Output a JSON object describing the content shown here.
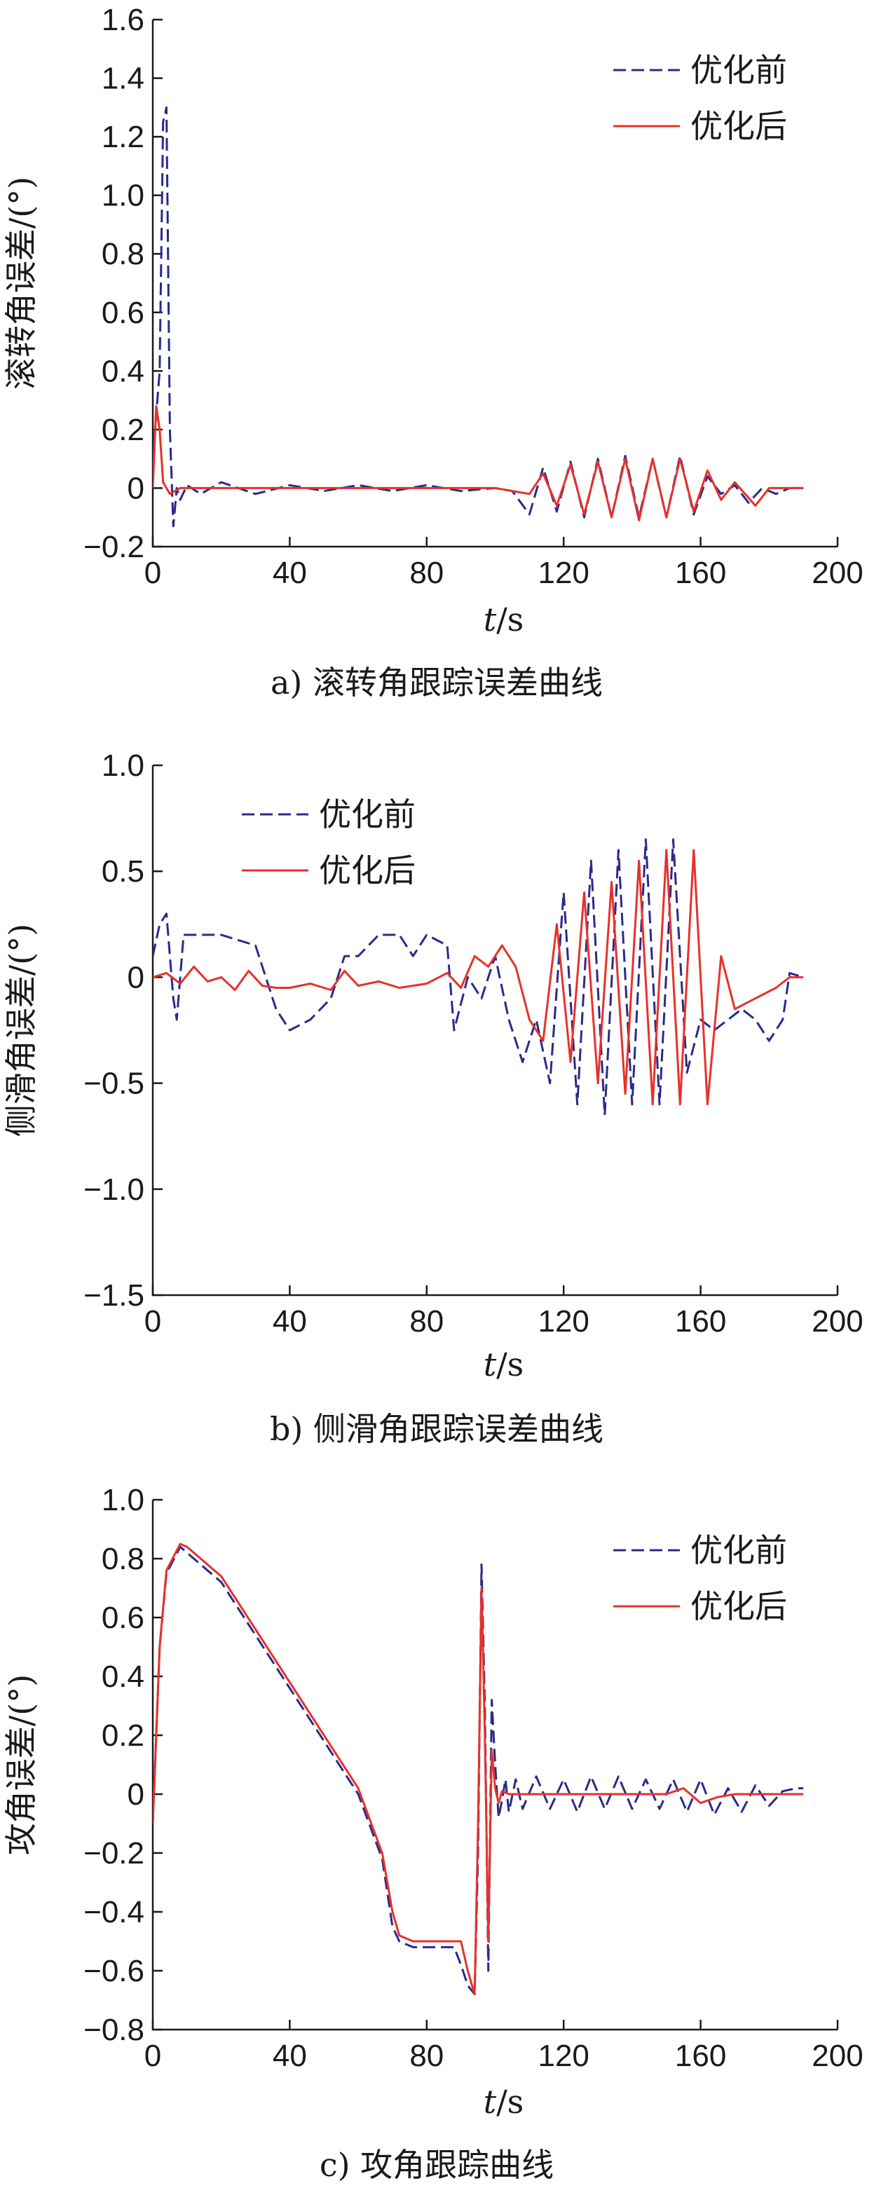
{
  "colors": {
    "before": "#2a2a8c",
    "after": "#e8312a",
    "axis": "#1a1a1a"
  },
  "chart_data": [
    {
      "type": "line",
      "caption": "a) 滚转角跟踪误差曲线",
      "xlabel_italic": "t",
      "xlabel_unit": "/s",
      "ylabel": "滚转角误差/(°)",
      "xlim": [
        0,
        200
      ],
      "ylim": [
        -0.2,
        1.6
      ],
      "xticks": [
        0,
        40,
        80,
        120,
        160,
        200
      ],
      "yticks": [
        -0.2,
        0,
        0.2,
        0.4,
        0.6,
        0.8,
        1.0,
        1.2,
        1.4,
        1.6
      ],
      "ytick_labels": [
        "−0.2",
        "0",
        "0.2",
        "0.4",
        "0.6",
        "0.8",
        "1.0",
        "1.2",
        "1.4",
        "1.6"
      ],
      "legend": "top-right",
      "series": [
        {
          "name": "优化前",
          "style": "dashed",
          "x": [
            0,
            2,
            3,
            4,
            5,
            6,
            7,
            8,
            10,
            14,
            20,
            30,
            40,
            50,
            60,
            70,
            80,
            90,
            100,
            105,
            110,
            114,
            118,
            122,
            126,
            130,
            134,
            138,
            142,
            146,
            150,
            154,
            158,
            162,
            166,
            170,
            174,
            178,
            182,
            186,
            190
          ],
          "y": [
            0.1,
            0.4,
            1.25,
            1.3,
            0.2,
            -0.13,
            0.0,
            -0.04,
            0.01,
            -0.02,
            0.02,
            -0.02,
            0.01,
            -0.01,
            0.01,
            -0.01,
            0.01,
            -0.01,
            0.0,
            -0.01,
            -0.09,
            0.07,
            -0.08,
            0.09,
            -0.1,
            0.1,
            -0.1,
            0.11,
            -0.1,
            0.1,
            -0.1,
            0.11,
            -0.09,
            0.04,
            -0.02,
            0.01,
            -0.05,
            0.0,
            -0.02,
            0.0,
            0.0
          ]
        },
        {
          "name": "优化后",
          "style": "solid",
          "x": [
            0,
            1,
            2,
            3,
            5,
            8,
            10,
            20,
            40,
            60,
            80,
            100,
            105,
            110,
            114,
            118,
            122,
            126,
            130,
            134,
            138,
            142,
            146,
            150,
            154,
            158,
            162,
            166,
            170,
            176,
            180,
            184,
            190
          ],
          "y": [
            0.0,
            0.28,
            0.2,
            0.02,
            -0.02,
            0.0,
            0.0,
            0.0,
            0.0,
            0.0,
            0.0,
            0.0,
            -0.01,
            -0.02,
            0.05,
            -0.06,
            0.08,
            -0.09,
            0.09,
            -0.1,
            0.1,
            -0.11,
            0.1,
            -0.1,
            0.1,
            -0.08,
            0.06,
            -0.04,
            0.02,
            -0.06,
            0.0,
            0.0,
            0.0
          ]
        }
      ]
    },
    {
      "type": "line",
      "caption": "b) 侧滑角跟踪误差曲线",
      "xlabel_italic": "t",
      "xlabel_unit": "/s",
      "ylabel": "侧滑角误差/(°)",
      "xlim": [
        0,
        200
      ],
      "ylim": [
        -1.5,
        1.0
      ],
      "xticks": [
        0,
        40,
        80,
        120,
        160,
        200
      ],
      "yticks": [
        -1.5,
        -1.0,
        -0.5,
        0,
        0.5,
        1.0
      ],
      "ytick_labels": [
        "−1.5",
        "−1.0",
        "−0.5",
        "0",
        "0.5",
        "1.0"
      ],
      "legend": "top-left",
      "series": [
        {
          "name": "优化前",
          "style": "dashed",
          "x": [
            0,
            2,
            4,
            6,
            7,
            9,
            12,
            20,
            30,
            36,
            40,
            46,
            52,
            56,
            60,
            66,
            72,
            76,
            80,
            86,
            88,
            92,
            96,
            100,
            104,
            108,
            112,
            116,
            120,
            124,
            128,
            132,
            136,
            140,
            144,
            148,
            152,
            156,
            160,
            164,
            168,
            172,
            176,
            180,
            184,
            186,
            190
          ],
          "y": [
            0.1,
            0.25,
            0.3,
            -0.1,
            -0.2,
            0.2,
            0.2,
            0.2,
            0.15,
            -0.15,
            -0.25,
            -0.2,
            -0.1,
            0.1,
            0.1,
            0.2,
            0.2,
            0.1,
            0.2,
            0.15,
            -0.25,
            0.0,
            -0.1,
            0.1,
            -0.2,
            -0.4,
            -0.2,
            -0.5,
            0.4,
            -0.6,
            0.55,
            -0.65,
            0.6,
            -0.6,
            0.65,
            -0.6,
            0.65,
            -0.45,
            -0.2,
            -0.25,
            -0.2,
            -0.15,
            -0.2,
            -0.3,
            -0.2,
            0.02,
            0.0
          ]
        },
        {
          "name": "优化后",
          "style": "solid",
          "x": [
            0,
            4,
            8,
            12,
            16,
            20,
            24,
            28,
            32,
            36,
            40,
            46,
            52,
            56,
            60,
            66,
            72,
            80,
            86,
            90,
            94,
            98,
            102,
            106,
            110,
            114,
            118,
            122,
            126,
            130,
            134,
            138,
            142,
            146,
            150,
            154,
            158,
            162,
            166,
            170,
            176,
            182,
            186,
            190
          ],
          "y": [
            0.0,
            0.02,
            -0.03,
            0.05,
            -0.02,
            0.0,
            -0.06,
            0.03,
            -0.04,
            -0.05,
            -0.05,
            -0.03,
            -0.06,
            0.03,
            -0.04,
            -0.02,
            -0.05,
            -0.03,
            0.02,
            -0.05,
            0.1,
            0.05,
            0.15,
            0.05,
            -0.2,
            -0.3,
            0.25,
            -0.4,
            0.4,
            -0.5,
            0.45,
            -0.55,
            0.55,
            -0.6,
            0.6,
            -0.6,
            0.6,
            -0.6,
            0.1,
            -0.15,
            -0.1,
            -0.05,
            0.0,
            0.0
          ]
        }
      ]
    },
    {
      "type": "line",
      "caption": "c) 攻角跟踪曲线",
      "xlabel_italic": "t",
      "xlabel_unit": "/s",
      "ylabel": "攻角误差/(°)",
      "xlim": [
        0,
        200
      ],
      "ylim": [
        -0.8,
        1.0
      ],
      "xticks": [
        0,
        40,
        80,
        120,
        160,
        200
      ],
      "yticks": [
        -0.8,
        -0.6,
        -0.4,
        -0.2,
        0,
        0.2,
        0.4,
        0.6,
        0.8,
        1.0
      ],
      "ytick_labels": [
        "−0.8",
        "−0.6",
        "−0.4",
        "−0.2",
        "0",
        "0.2",
        "0.4",
        "0.6",
        "0.8",
        "1.0"
      ],
      "legend": "top-right",
      "series": [
        {
          "name": "优化前",
          "style": "dashed",
          "x": [
            0,
            2,
            4,
            8,
            10,
            20,
            40,
            60,
            67,
            70,
            72,
            76,
            80,
            85,
            88,
            90,
            92,
            94,
            95,
            96,
            97,
            98,
            99,
            100,
            101,
            102,
            103,
            104,
            106,
            108,
            112,
            116,
            120,
            124,
            128,
            132,
            136,
            140,
            144,
            148,
            152,
            156,
            160,
            164,
            168,
            172,
            176,
            180,
            184,
            188,
            190
          ],
          "y": [
            -0.1,
            0.5,
            0.75,
            0.84,
            0.82,
            0.72,
            0.36,
            0.0,
            -0.22,
            -0.45,
            -0.5,
            -0.52,
            -0.52,
            -0.52,
            -0.52,
            -0.58,
            -0.65,
            -0.68,
            -0.2,
            0.78,
            0.3,
            -0.6,
            0.32,
            0.1,
            -0.08,
            -0.02,
            0.05,
            -0.06,
            0.05,
            -0.05,
            0.06,
            -0.05,
            0.05,
            -0.06,
            0.06,
            -0.05,
            0.06,
            -0.05,
            0.05,
            -0.05,
            0.05,
            -0.06,
            0.05,
            -0.07,
            0.02,
            -0.06,
            0.03,
            -0.04,
            0.01,
            0.02,
            0.02
          ]
        },
        {
          "name": "优化后",
          "style": "solid",
          "x": [
            0,
            2,
            4,
            8,
            10,
            20,
            40,
            60,
            67,
            70,
            72,
            76,
            80,
            85,
            90,
            92,
            94,
            95,
            96,
            97,
            98,
            99,
            100,
            101,
            102,
            104,
            110,
            120,
            130,
            140,
            150,
            155,
            160,
            165,
            170,
            180,
            190
          ],
          "y": [
            -0.1,
            0.5,
            0.76,
            0.85,
            0.84,
            0.74,
            0.38,
            0.02,
            -0.2,
            -0.4,
            -0.48,
            -0.5,
            -0.5,
            -0.5,
            -0.5,
            -0.6,
            -0.68,
            -0.1,
            0.7,
            0.2,
            -0.5,
            0.15,
            0.02,
            -0.03,
            0.01,
            0.0,
            0.0,
            0.0,
            0.0,
            0.0,
            0.0,
            0.02,
            -0.03,
            -0.01,
            0.0,
            0.0,
            0.0
          ]
        }
      ]
    }
  ]
}
